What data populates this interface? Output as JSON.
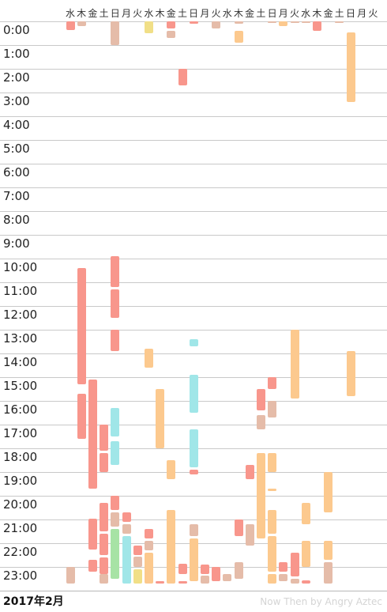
{
  "day_labels": [
    "水",
    "木",
    "金",
    "土",
    "日",
    "月",
    "火",
    "水",
    "木",
    "金",
    "土",
    "日",
    "月",
    "火",
    "水",
    "木",
    "金",
    "土",
    "日",
    "月",
    "火",
    "水",
    "木",
    "金",
    "土",
    "日",
    "月",
    "火"
  ],
  "hour_labels": [
    "0:00",
    "1:00",
    "2:00",
    "3:00",
    "4:00",
    "5:00",
    "6:00",
    "7:00",
    "8:00",
    "9:00",
    "10:00",
    "11:00",
    "12:00",
    "13:00",
    "14:00",
    "15:00",
    "16:00",
    "17:00",
    "18:00",
    "19:00",
    "20:00",
    "21:00",
    "22:00",
    "23:00"
  ],
  "footer": {
    "month": "2017年2月",
    "watermark": "Now Then by Angry Aztec"
  },
  "colors": {
    "red": "#f8968c",
    "orange": "#fcc98e",
    "tan": "#e5bca9",
    "cyan": "#a0e6e8",
    "green": "#a7e3a5",
    "yellow": "#f1df87"
  },
  "events": [
    {
      "day": 0,
      "start": 0.0,
      "end": 0.35,
      "color": "red"
    },
    {
      "day": 0,
      "start": 23.0,
      "end": 23.7,
      "color": "tan"
    },
    {
      "day": 1,
      "start": 0.0,
      "end": 0.2,
      "color": "tan"
    },
    {
      "day": 1,
      "start": 10.4,
      "end": 15.3,
      "color": "red"
    },
    {
      "day": 1,
      "start": 15.7,
      "end": 17.6,
      "color": "red"
    },
    {
      "day": 2,
      "start": 15.1,
      "end": 19.7,
      "color": "red"
    },
    {
      "day": 2,
      "start": 20.95,
      "end": 22.25,
      "color": "red"
    },
    {
      "day": 2,
      "start": 22.7,
      "end": 23.2,
      "color": "red"
    },
    {
      "day": 3,
      "start": 17.0,
      "end": 18.1,
      "color": "red"
    },
    {
      "day": 3,
      "start": 18.2,
      "end": 19.0,
      "color": "red"
    },
    {
      "day": 3,
      "start": 20.3,
      "end": 21.5,
      "color": "red"
    },
    {
      "day": 3,
      "start": 21.6,
      "end": 22.5,
      "color": "red"
    },
    {
      "day": 3,
      "start": 22.6,
      "end": 23.3,
      "color": "red"
    },
    {
      "day": 3,
      "start": 23.3,
      "end": 23.7,
      "color": "tan"
    },
    {
      "day": 4,
      "start": 0.0,
      "end": 1.0,
      "color": "tan"
    },
    {
      "day": 4,
      "start": 9.9,
      "end": 11.2,
      "color": "red"
    },
    {
      "day": 4,
      "start": 11.3,
      "end": 12.5,
      "color": "red"
    },
    {
      "day": 4,
      "start": 13.0,
      "end": 13.9,
      "color": "red"
    },
    {
      "day": 4,
      "start": 16.3,
      "end": 17.5,
      "color": "cyan"
    },
    {
      "day": 4,
      "start": 17.7,
      "end": 18.7,
      "color": "cyan"
    },
    {
      "day": 4,
      "start": 20.0,
      "end": 20.6,
      "color": "red"
    },
    {
      "day": 4,
      "start": 20.7,
      "end": 21.3,
      "color": "tan"
    },
    {
      "day": 4,
      "start": 21.4,
      "end": 23.5,
      "color": "green"
    },
    {
      "day": 5,
      "start": 20.7,
      "end": 21.1,
      "color": "red"
    },
    {
      "day": 5,
      "start": 21.2,
      "end": 21.6,
      "color": "tan"
    },
    {
      "day": 5,
      "start": 21.7,
      "end": 23.7,
      "color": "cyan"
    },
    {
      "day": 6,
      "start": 22.1,
      "end": 22.5,
      "color": "red"
    },
    {
      "day": 6,
      "start": 22.55,
      "end": 23.0,
      "color": "tan"
    },
    {
      "day": 6,
      "start": 23.1,
      "end": 23.7,
      "color": "yellow"
    },
    {
      "day": 7,
      "start": 0.0,
      "end": 0.5,
      "color": "yellow"
    },
    {
      "day": 7,
      "start": 13.8,
      "end": 14.6,
      "color": "orange"
    },
    {
      "day": 7,
      "start": 21.4,
      "end": 21.8,
      "color": "red"
    },
    {
      "day": 7,
      "start": 21.9,
      "end": 22.3,
      "color": "tan"
    },
    {
      "day": 7,
      "start": 22.4,
      "end": 23.7,
      "color": "orange"
    },
    {
      "day": 8,
      "start": 15.5,
      "end": 18.0,
      "color": "orange"
    },
    {
      "day": 8,
      "start": 23.6,
      "end": 23.7,
      "color": "red"
    },
    {
      "day": 9,
      "start": 0.0,
      "end": 0.3,
      "color": "red"
    },
    {
      "day": 9,
      "start": 0.4,
      "end": 0.7,
      "color": "tan"
    },
    {
      "day": 9,
      "start": 18.5,
      "end": 19.3,
      "color": "orange"
    },
    {
      "day": 9,
      "start": 20.6,
      "end": 23.7,
      "color": "orange"
    },
    {
      "day": 10,
      "start": 2.0,
      "end": 2.7,
      "color": "red"
    },
    {
      "day": 10,
      "start": 22.85,
      "end": 23.3,
      "color": "red"
    },
    {
      "day": 10,
      "start": 23.6,
      "end": 23.7,
      "color": "red"
    },
    {
      "day": 11,
      "start": 0.0,
      "end": 0.1,
      "color": "red"
    },
    {
      "day": 11,
      "start": 13.4,
      "end": 13.7,
      "color": "cyan"
    },
    {
      "day": 11,
      "start": 14.9,
      "end": 16.5,
      "color": "cyan"
    },
    {
      "day": 11,
      "start": 17.2,
      "end": 18.8,
      "color": "cyan"
    },
    {
      "day": 11,
      "start": 18.9,
      "end": 19.1,
      "color": "red"
    },
    {
      "day": 11,
      "start": 21.2,
      "end": 21.7,
      "color": "tan"
    },
    {
      "day": 11,
      "start": 21.8,
      "end": 23.6,
      "color": "orange"
    },
    {
      "day": 12,
      "start": 22.9,
      "end": 23.3,
      "color": "red"
    },
    {
      "day": 12,
      "start": 23.35,
      "end": 23.7,
      "color": "tan"
    },
    {
      "day": 13,
      "start": 0.0,
      "end": 0.3,
      "color": "tan"
    },
    {
      "day": 13,
      "start": 23.0,
      "end": 23.6,
      "color": "red"
    },
    {
      "day": 14,
      "start": 23.3,
      "end": 23.6,
      "color": "tan"
    },
    {
      "day": 15,
      "start": 0.0,
      "end": 0.1,
      "color": "tan"
    },
    {
      "day": 15,
      "start": 0.4,
      "end": 0.9,
      "color": "orange"
    },
    {
      "day": 15,
      "start": 21.0,
      "end": 21.7,
      "color": "red"
    },
    {
      "day": 15,
      "start": 22.8,
      "end": 23.5,
      "color": "tan"
    },
    {
      "day": 16,
      "start": 18.7,
      "end": 19.3,
      "color": "red"
    },
    {
      "day": 16,
      "start": 21.2,
      "end": 22.1,
      "color": "tan"
    },
    {
      "day": 17,
      "start": 15.5,
      "end": 16.4,
      "color": "red"
    },
    {
      "day": 17,
      "start": 16.6,
      "end": 17.2,
      "color": "tan"
    },
    {
      "day": 17,
      "start": 18.2,
      "end": 21.8,
      "color": "orange"
    },
    {
      "day": 18,
      "start": 0.0,
      "end": 0.05,
      "color": "tan"
    },
    {
      "day": 18,
      "start": 15.0,
      "end": 15.5,
      "color": "red"
    },
    {
      "day": 18,
      "start": 16.0,
      "end": 16.7,
      "color": "tan"
    },
    {
      "day": 18,
      "start": 18.2,
      "end": 19.0,
      "color": "orange"
    },
    {
      "day": 18,
      "start": 19.7,
      "end": 19.8,
      "color": "orange"
    },
    {
      "day": 18,
      "start": 20.6,
      "end": 21.6,
      "color": "orange"
    },
    {
      "day": 18,
      "start": 21.7,
      "end": 23.2,
      "color": "orange"
    },
    {
      "day": 18,
      "start": 23.3,
      "end": 23.7,
      "color": "orange"
    },
    {
      "day": 19,
      "start": 0.0,
      "end": 0.2,
      "color": "orange"
    },
    {
      "day": 19,
      "start": 22.8,
      "end": 23.2,
      "color": "red"
    },
    {
      "day": 19,
      "start": 23.3,
      "end": 23.6,
      "color": "tan"
    },
    {
      "day": 20,
      "start": 0.0,
      "end": 0.05,
      "color": "tan"
    },
    {
      "day": 20,
      "start": 13.0,
      "end": 15.9,
      "color": "orange"
    },
    {
      "day": 20,
      "start": 22.4,
      "end": 23.4,
      "color": "red"
    },
    {
      "day": 20,
      "start": 23.5,
      "end": 23.7,
      "color": "tan"
    },
    {
      "day": 21,
      "start": 0.0,
      "end": 0.05,
      "color": "tan"
    },
    {
      "day": 21,
      "start": 20.3,
      "end": 21.2,
      "color": "orange"
    },
    {
      "day": 21,
      "start": 21.9,
      "end": 23.0,
      "color": "orange"
    },
    {
      "day": 21,
      "start": 23.55,
      "end": 23.7,
      "color": "red"
    },
    {
      "day": 22,
      "start": 0.0,
      "end": 0.4,
      "color": "red"
    },
    {
      "day": 23,
      "start": 19.0,
      "end": 20.7,
      "color": "orange"
    },
    {
      "day": 23,
      "start": 21.9,
      "end": 22.7,
      "color": "orange"
    },
    {
      "day": 23,
      "start": 22.8,
      "end": 23.7,
      "color": "tan"
    },
    {
      "day": 24,
      "start": 0.0,
      "end": 0.05,
      "color": "tan"
    },
    {
      "day": 25,
      "start": 0.45,
      "end": 3.4,
      "color": "orange"
    },
    {
      "day": 25,
      "start": 13.9,
      "end": 15.8,
      "color": "orange"
    }
  ]
}
